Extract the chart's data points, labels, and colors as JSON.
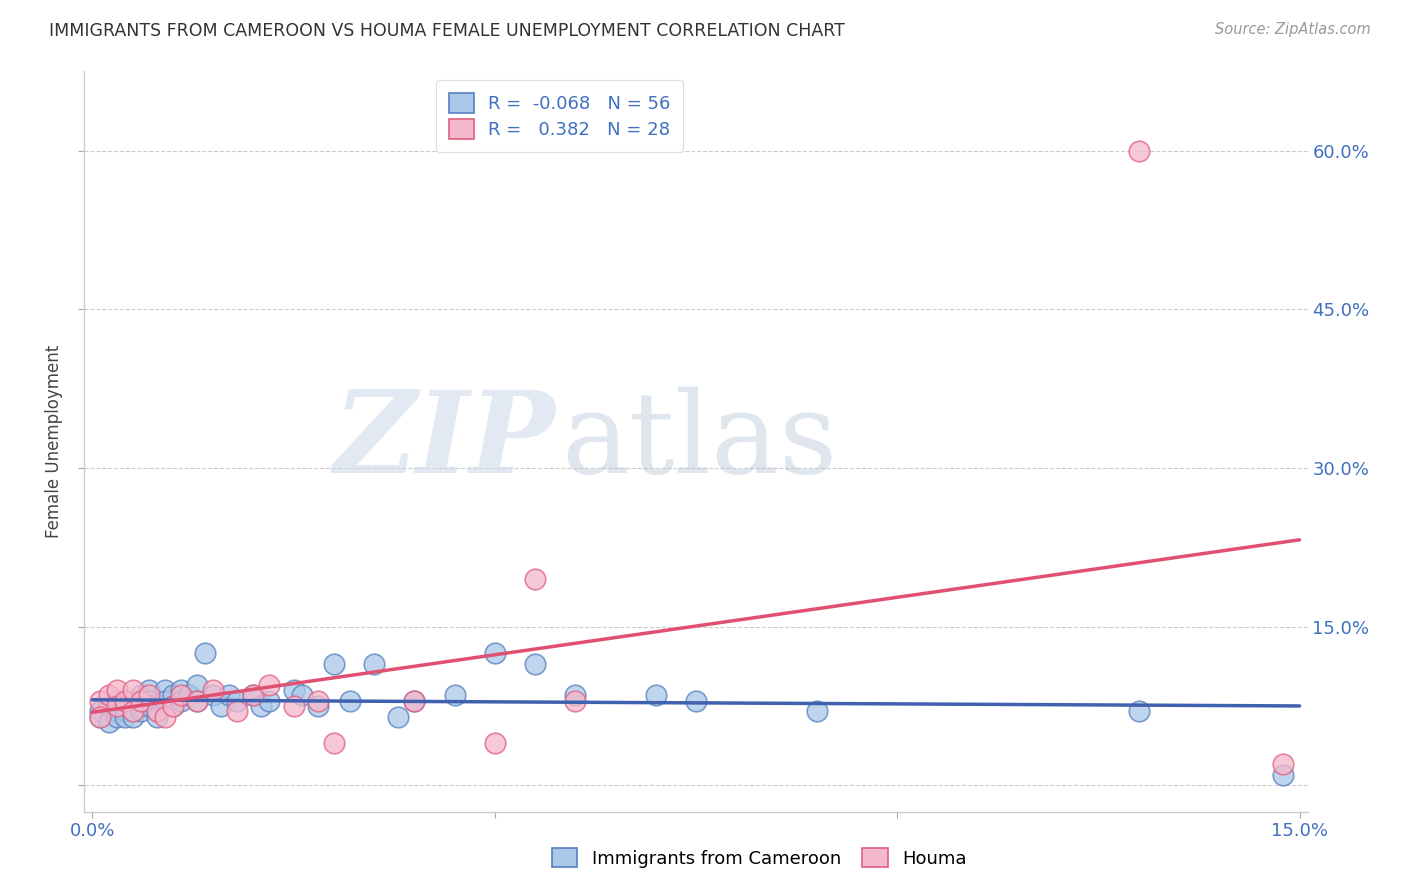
{
  "title": "IMMIGRANTS FROM CAMEROON VS HOUMA FEMALE UNEMPLOYMENT CORRELATION CHART",
  "source": "Source: ZipAtlas.com",
  "xlabel_blue": "Immigrants from Cameroon",
  "xlabel_pink": "Houma",
  "ylabel": "Female Unemployment",
  "watermark_zip": "ZIP",
  "watermark_atlas": "atlas",
  "xmin": 0.0,
  "xmax": 0.15,
  "ymin": -0.025,
  "ymax": 0.675,
  "yticks": [
    0.0,
    0.15,
    0.3,
    0.45,
    0.6
  ],
  "ytick_labels": [
    "",
    "15.0%",
    "30.0%",
    "45.0%",
    "60.0%"
  ],
  "xticks": [
    0.0,
    0.05,
    0.1,
    0.15
  ],
  "xtick_labels": [
    "0.0%",
    "",
    "",
    "15.0%"
  ],
  "blue_R": -0.068,
  "blue_N": 56,
  "pink_R": 0.382,
  "pink_N": 28,
  "blue_color": "#aac8e8",
  "pink_color": "#f5b8cc",
  "blue_edge_color": "#5580c0",
  "pink_edge_color": "#e06080",
  "blue_line_color": "#4060b0",
  "pink_line_color": "#e05070",
  "background_color": "#ffffff",
  "grid_color": "#cccccc",
  "blue_x": [
    0.001,
    0.001,
    0.002,
    0.002,
    0.003,
    0.003,
    0.003,
    0.004,
    0.004,
    0.004,
    0.005,
    0.005,
    0.005,
    0.005,
    0.006,
    0.006,
    0.006,
    0.007,
    0.007,
    0.007,
    0.008,
    0.008,
    0.009,
    0.009,
    0.01,
    0.01,
    0.011,
    0.011,
    0.012,
    0.013,
    0.013,
    0.014,
    0.015,
    0.016,
    0.017,
    0.018,
    0.02,
    0.021,
    0.022,
    0.025,
    0.026,
    0.028,
    0.03,
    0.032,
    0.035,
    0.038,
    0.04,
    0.045,
    0.05,
    0.055,
    0.06,
    0.07,
    0.075,
    0.09,
    0.13,
    0.148
  ],
  "blue_y": [
    0.07,
    0.065,
    0.075,
    0.06,
    0.08,
    0.07,
    0.065,
    0.075,
    0.07,
    0.065,
    0.08,
    0.075,
    0.07,
    0.065,
    0.085,
    0.075,
    0.07,
    0.09,
    0.08,
    0.075,
    0.07,
    0.065,
    0.09,
    0.08,
    0.085,
    0.075,
    0.09,
    0.08,
    0.085,
    0.095,
    0.08,
    0.125,
    0.085,
    0.075,
    0.085,
    0.08,
    0.085,
    0.075,
    0.08,
    0.09,
    0.085,
    0.075,
    0.115,
    0.08,
    0.115,
    0.065,
    0.08,
    0.085,
    0.125,
    0.115,
    0.085,
    0.085,
    0.08,
    0.07,
    0.07,
    0.01
  ],
  "pink_x": [
    0.001,
    0.001,
    0.002,
    0.003,
    0.003,
    0.004,
    0.005,
    0.005,
    0.006,
    0.007,
    0.008,
    0.009,
    0.01,
    0.011,
    0.013,
    0.015,
    0.018,
    0.02,
    0.022,
    0.025,
    0.028,
    0.03,
    0.04,
    0.05,
    0.055,
    0.06,
    0.13,
    0.148
  ],
  "pink_y": [
    0.08,
    0.065,
    0.085,
    0.09,
    0.075,
    0.08,
    0.09,
    0.07,
    0.08,
    0.085,
    0.07,
    0.065,
    0.075,
    0.085,
    0.08,
    0.09,
    0.07,
    0.085,
    0.095,
    0.075,
    0.08,
    0.04,
    0.08,
    0.04,
    0.195,
    0.08,
    0.6,
    0.02
  ],
  "blue_line_x": [
    0.0,
    0.15
  ],
  "blue_line_y": [
    0.082,
    0.07
  ],
  "pink_line_x": [
    0.0,
    0.15
  ],
  "pink_line_y": [
    0.02,
    0.26
  ]
}
